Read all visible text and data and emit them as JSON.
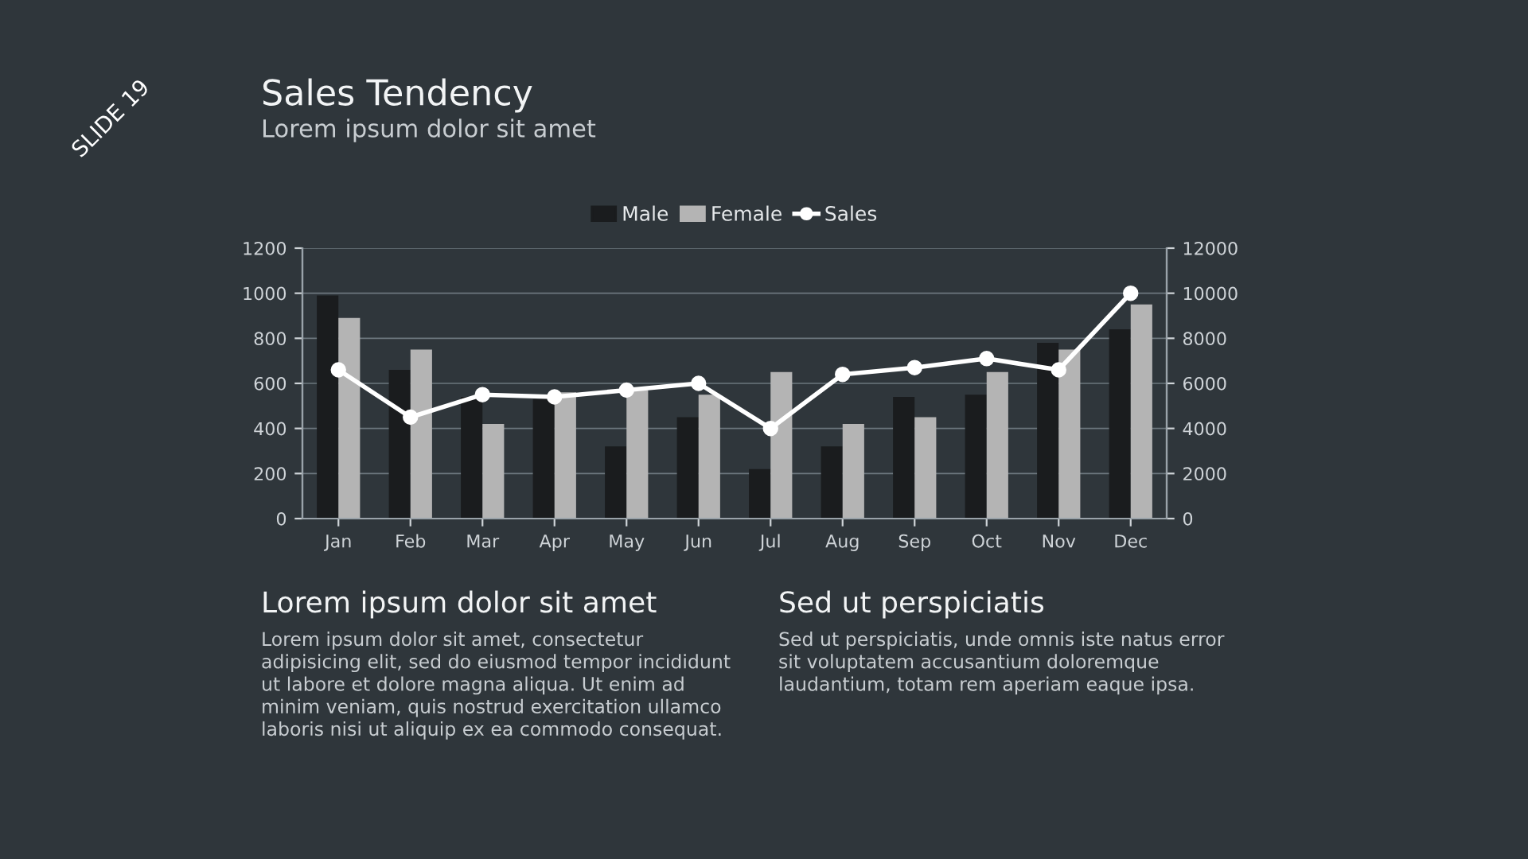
{
  "chart_data": {
    "type": "bar",
    "title": "Sales Tendency",
    "subtitle": "Lorem ipsum dolor sit amet",
    "categories": [
      "Jan",
      "Feb",
      "Mar",
      "Apr",
      "May",
      "Jun",
      "Jul",
      "Aug",
      "Sep",
      "Oct",
      "Nov",
      "Dec"
    ],
    "series": [
      {
        "name": "Male",
        "color": "#1a1c1e",
        "values": [
          990,
          660,
          540,
          530,
          320,
          450,
          220,
          320,
          540,
          550,
          780,
          840
        ]
      },
      {
        "name": "Female",
        "color": "#b4b4b4",
        "values": [
          890,
          750,
          420,
          560,
          570,
          550,
          650,
          420,
          450,
          650,
          750,
          950
        ]
      },
      {
        "name": "Sales",
        "type": "line",
        "axis": "y2",
        "color": "#ffffff",
        "marker": "circle",
        "values": [
          6600,
          4500,
          5500,
          5400,
          5700,
          6000,
          4000,
          6400,
          6700,
          7100,
          6600,
          10000
        ]
      }
    ],
    "ylim": [
      0,
      1200
    ],
    "yticks": [
      0,
      200,
      400,
      600,
      800,
      1000,
      1200
    ],
    "y2lim": [
      0,
      12000
    ],
    "y2ticks": [
      0,
      2000,
      4000,
      6000,
      8000,
      10000,
      12000
    ],
    "grid": "y",
    "legend": "top",
    "annotations": [
      "SLIDE 19",
      "Lorem ipsum dolor sit amet",
      "Lorem ipsum dolor sit amet, consectetur adipisicing elit, sed do eiusmod tempor incididunt ut labore et dolore magna aliqua. Ut enim ad minim veniam, quis nostrud exercitation ullamco laboris nisi ut aliquip ex ea commodo consequat.",
      "Sed ut perspiciatis",
      "Sed ut perspiciatis, unde omnis iste natus error sit voluptatem accusantium doloremque laudantium, totam rem aperiam eaque ipsa."
    ]
  }
}
